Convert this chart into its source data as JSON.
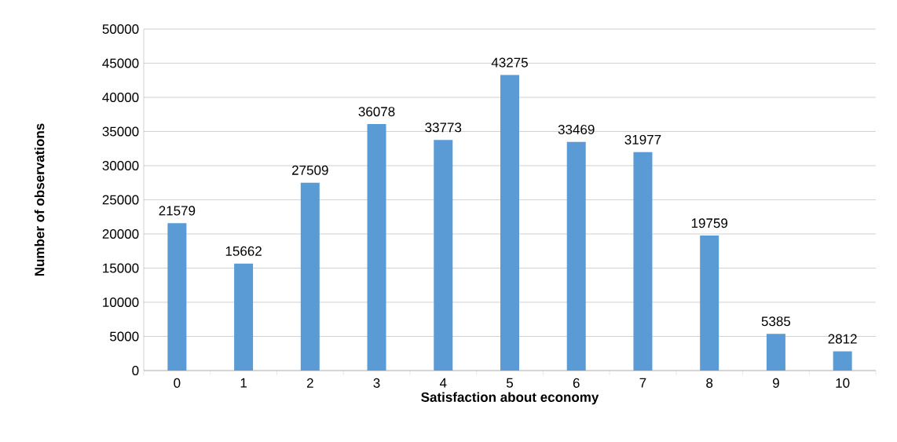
{
  "chart_data": {
    "type": "bar",
    "xlabel": "Satisfaction about economy",
    "ylabel": "Number of observations",
    "categories": [
      "0",
      "1",
      "2",
      "3",
      "4",
      "5",
      "6",
      "7",
      "8",
      "9",
      "10"
    ],
    "values": [
      21579,
      15662,
      27509,
      36078,
      33773,
      43275,
      33469,
      31977,
      19759,
      5385,
      2812
    ],
    "color": "#5b9bd5",
    "ylim": [
      0,
      50000
    ],
    "yticks": [
      0,
      5000,
      10000,
      15000,
      20000,
      25000,
      30000,
      35000,
      40000,
      45000,
      50000
    ],
    "grid": "y",
    "data_labels": true
  }
}
